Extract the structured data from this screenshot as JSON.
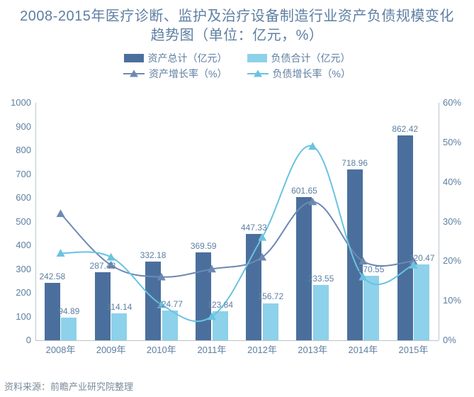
{
  "title": "2008-2015年医疗诊断、监护及治疗设备制造行业资产负债规模变化趋势图（单位：亿元，%）",
  "source": "资料来源：前瞻产业研究院整理",
  "chart": {
    "type": "bar+line-dual-axis",
    "background_color": "#ffffff",
    "grid_color": "#d8dee5",
    "axis_color": "#b9c4ce",
    "text_color": "#5e7fa2",
    "title_fontsize": 20,
    "label_fontsize": 13,
    "value_fontsize": 12,
    "categories": [
      "2008年",
      "2009年",
      "2010年",
      "2011年",
      "2012年",
      "2013年",
      "2014年",
      "2015年"
    ],
    "left_axis": {
      "min": 0,
      "max": 1000,
      "step": 100,
      "unit": "亿元"
    },
    "right_axis": {
      "min": 0,
      "max": 60,
      "step": 10,
      "unit": "%"
    },
    "bar_group_width": 0.64,
    "bar_gap": 0.02,
    "series": [
      {
        "name": "资产总计（亿元）",
        "axis": "left",
        "render": "bar",
        "color": "#4b6f9c",
        "values": [
          242.58,
          287.43,
          332.18,
          369.59,
          447.33,
          601.65,
          718.96,
          862.42
        ]
      },
      {
        "name": "负债合计（亿元）",
        "axis": "left",
        "render": "bar",
        "color": "#8dd1ea",
        "values": [
          94.89,
          114.14,
          124.77,
          123.84,
          156.72,
          233.55,
          270.55,
          320.47
        ]
      },
      {
        "name": "资产增长率（%）",
        "axis": "right",
        "render": "line",
        "color": "#6d89b3",
        "marker": "triangle",
        "line_width": 2,
        "values": [
          32,
          19,
          16,
          18,
          21,
          35,
          20,
          20
        ]
      },
      {
        "name": "负债增长率（%）",
        "axis": "right",
        "render": "line",
        "color": "#69c3e0",
        "marker": "triangle",
        "line_width": 2,
        "values": [
          22,
          21,
          9,
          6,
          26,
          49,
          16,
          19
        ]
      }
    ],
    "legend": {
      "rows": [
        [
          0,
          1
        ],
        [
          2,
          3
        ]
      ]
    }
  }
}
